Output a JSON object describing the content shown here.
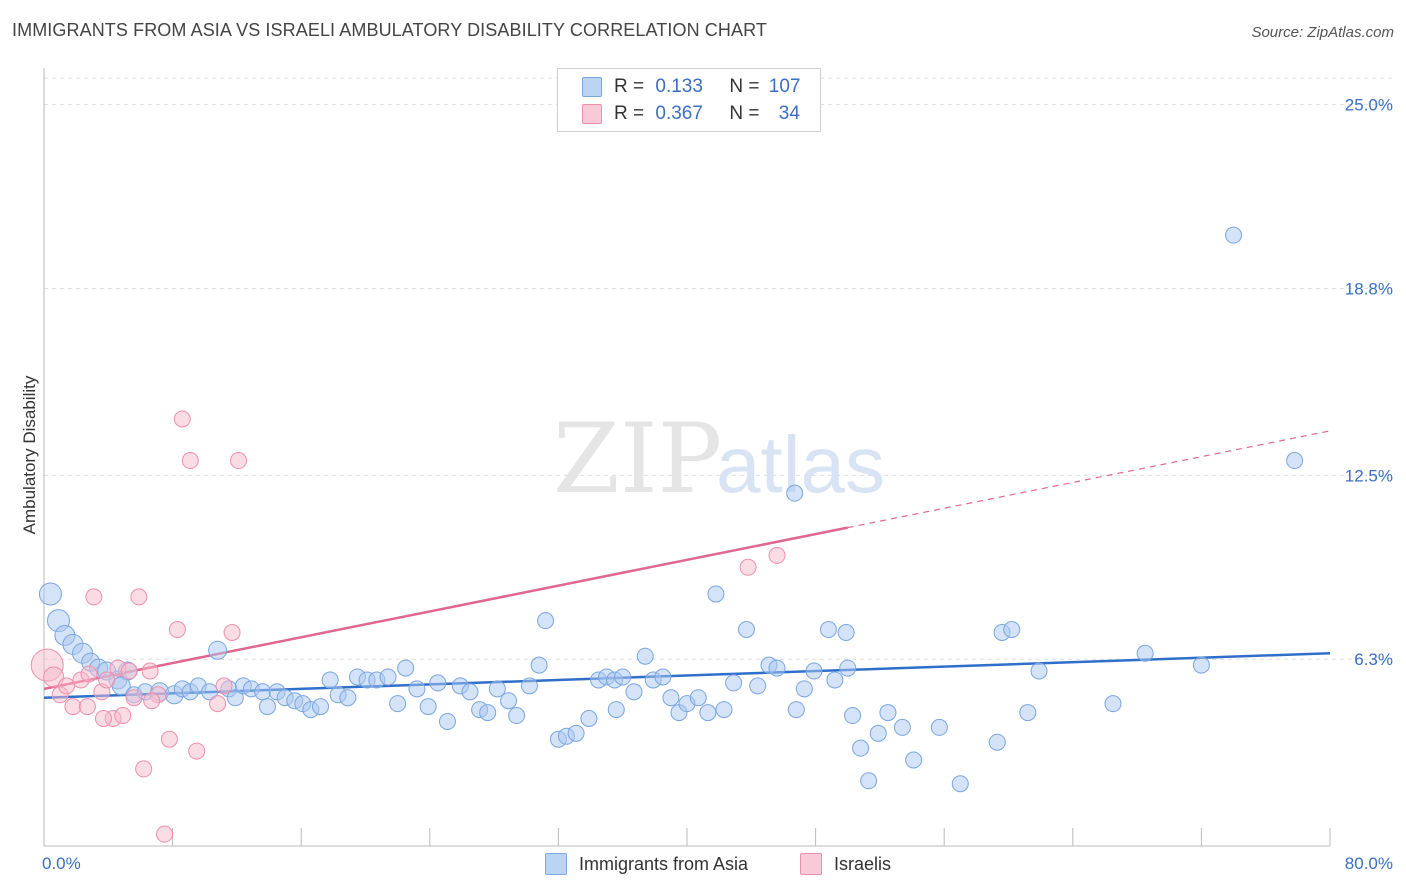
{
  "title": "IMMIGRANTS FROM ASIA VS ISRAELI AMBULATORY DISABILITY CORRELATION CHART",
  "source": "Source: ZipAtlas.com",
  "watermark_zip": "ZIP",
  "watermark_atlas": "atlas",
  "legend": {
    "rows": [
      {
        "r_label": "R =",
        "r_value": "0.133",
        "n_label": "N =",
        "n_value": "107"
      },
      {
        "r_label": "R =",
        "r_value": "0.367",
        "n_label": "N =",
        "n_value": "34"
      }
    ]
  },
  "colors": {
    "blue_fill": "#a9c8f0",
    "blue_stroke": "#7aa6e0",
    "blue_line": "#2f6fcc",
    "pink_fill": "#f6b9cc",
    "pink_stroke": "#ee8fae",
    "pink_line": "#e0678f",
    "axis_label": "#3a6fc4",
    "grid": "#dddddd"
  },
  "chart_data": {
    "type": "scatter",
    "xlabel": "",
    "ylabel": "Ambulatory Disability",
    "xlim": [
      0,
      80
    ],
    "ylim": [
      0,
      25.9
    ],
    "x_tick_labels": [
      "0.0%",
      "80.0%"
    ],
    "y_ticks": [
      6.3,
      12.5,
      18.8,
      25.0
    ],
    "y_tick_labels": [
      "6.3%",
      "12.5%",
      "18.8%",
      "25.0%"
    ],
    "grid": true,
    "legend_position": "bottom",
    "series": [
      {
        "name": "Immigrants from Asia",
        "trend": {
          "x": [
            0,
            80
          ],
          "y": [
            5.0,
            6.5
          ],
          "dashed_from": null
        },
        "points": [
          [
            0.4,
            8.5,
            11
          ],
          [
            0.9,
            7.6,
            11
          ],
          [
            1.3,
            7.1,
            10
          ],
          [
            1.8,
            6.8,
            10
          ],
          [
            2.4,
            6.5,
            10
          ],
          [
            2.9,
            6.2,
            9
          ],
          [
            3.4,
            6.0,
            9
          ],
          [
            3.9,
            5.9,
            9
          ],
          [
            4.6,
            5.6,
            9
          ],
          [
            5.2,
            5.9,
            9
          ],
          [
            4.8,
            5.4,
            9
          ],
          [
            5.6,
            5.1,
            8
          ],
          [
            6.3,
            5.2,
            8
          ],
          [
            7.2,
            5.2,
            9
          ],
          [
            8.1,
            5.1,
            9
          ],
          [
            8.6,
            5.3,
            8
          ],
          [
            9.1,
            5.2,
            8
          ],
          [
            9.6,
            5.4,
            8
          ],
          [
            10.3,
            5.2,
            8
          ],
          [
            10.8,
            6.6,
            9
          ],
          [
            11.5,
            5.3,
            8
          ],
          [
            11.9,
            5.0,
            8
          ],
          [
            12.4,
            5.4,
            8
          ],
          [
            12.9,
            5.3,
            8
          ],
          [
            13.6,
            5.2,
            8
          ],
          [
            13.9,
            4.7,
            8
          ],
          [
            14.5,
            5.2,
            8
          ],
          [
            15.0,
            5.0,
            8
          ],
          [
            15.6,
            4.9,
            8
          ],
          [
            16.1,
            4.8,
            8
          ],
          [
            16.6,
            4.6,
            8
          ],
          [
            17.2,
            4.7,
            8
          ],
          [
            17.8,
            5.6,
            8
          ],
          [
            18.3,
            5.1,
            8
          ],
          [
            18.9,
            5.0,
            8
          ],
          [
            19.5,
            5.7,
            8
          ],
          [
            20.1,
            5.6,
            8
          ],
          [
            20.7,
            5.6,
            8
          ],
          [
            21.4,
            5.7,
            8
          ],
          [
            22.0,
            4.8,
            8
          ],
          [
            22.5,
            6.0,
            8
          ],
          [
            23.2,
            5.3,
            8
          ],
          [
            23.9,
            4.7,
            8
          ],
          [
            24.5,
            5.5,
            8
          ],
          [
            25.1,
            4.2,
            8
          ],
          [
            25.9,
            5.4,
            8
          ],
          [
            26.5,
            5.2,
            8
          ],
          [
            27.1,
            4.6,
            8
          ],
          [
            27.6,
            4.5,
            8
          ],
          [
            28.2,
            5.3,
            8
          ],
          [
            28.9,
            4.9,
            8
          ],
          [
            29.4,
            4.4,
            8
          ],
          [
            30.2,
            5.4,
            8
          ],
          [
            30.8,
            6.1,
            8
          ],
          [
            31.2,
            7.6,
            8
          ],
          [
            32.0,
            3.6,
            8
          ],
          [
            32.5,
            3.7,
            8
          ],
          [
            33.1,
            3.8,
            8
          ],
          [
            33.9,
            4.3,
            8
          ],
          [
            34.5,
            5.6,
            8
          ],
          [
            35.0,
            5.7,
            8
          ],
          [
            35.5,
            5.6,
            8
          ],
          [
            36.0,
            5.7,
            8
          ],
          [
            36.7,
            5.2,
            8
          ],
          [
            37.4,
            6.4,
            8
          ],
          [
            37.9,
            5.6,
            8
          ],
          [
            38.5,
            5.7,
            8
          ],
          [
            39.0,
            5.0,
            8
          ],
          [
            39.5,
            4.5,
            8
          ],
          [
            40.0,
            4.8,
            8
          ],
          [
            40.7,
            5.0,
            8
          ],
          [
            41.3,
            4.5,
            8
          ],
          [
            41.8,
            8.5,
            8
          ],
          [
            42.3,
            4.6,
            8
          ],
          [
            42.9,
            5.5,
            8
          ],
          [
            43.7,
            7.3,
            8
          ],
          [
            44.4,
            5.4,
            8
          ],
          [
            45.1,
            6.1,
            8
          ],
          [
            45.6,
            6.0,
            8
          ],
          [
            46.7,
            11.9,
            8
          ],
          [
            46.8,
            4.6,
            8
          ],
          [
            47.3,
            5.3,
            8
          ],
          [
            47.9,
            5.9,
            8
          ],
          [
            48.8,
            7.3,
            8
          ],
          [
            49.2,
            5.6,
            8
          ],
          [
            49.9,
            7.2,
            8
          ],
          [
            50.3,
            4.4,
            8
          ],
          [
            50.8,
            3.3,
            8
          ],
          [
            51.9,
            3.8,
            8
          ],
          [
            51.3,
            2.2,
            8
          ],
          [
            52.5,
            4.5,
            8
          ],
          [
            53.4,
            4.0,
            8
          ],
          [
            54.1,
            2.9,
            8
          ],
          [
            55.7,
            4.0,
            8
          ],
          [
            57.0,
            2.1,
            8
          ],
          [
            59.3,
            3.5,
            8
          ],
          [
            59.6,
            7.2,
            8
          ],
          [
            60.2,
            7.3,
            8
          ],
          [
            61.2,
            4.5,
            8
          ],
          [
            61.9,
            5.9,
            8
          ],
          [
            66.5,
            4.8,
            8
          ],
          [
            68.5,
            6.5,
            8
          ],
          [
            72.0,
            6.1,
            8
          ],
          [
            74.0,
            20.6,
            8
          ],
          [
            77.8,
            13.0,
            8
          ],
          [
            50.0,
            6.0,
            8
          ],
          [
            35.6,
            4.6,
            8
          ]
        ]
      },
      {
        "name": "Israelis",
        "trend": {
          "x": [
            0,
            80
          ],
          "y": [
            5.3,
            14.0
          ],
          "dashed_from": 50.0
        },
        "points": [
          [
            0.2,
            6.1,
            16
          ],
          [
            0.6,
            5.7,
            10
          ],
          [
            1.0,
            5.1,
            8
          ],
          [
            1.4,
            5.4,
            8
          ],
          [
            1.8,
            4.7,
            8
          ],
          [
            2.3,
            5.6,
            8
          ],
          [
            2.8,
            5.8,
            8
          ],
          [
            2.7,
            4.7,
            8
          ],
          [
            3.1,
            8.4,
            8
          ],
          [
            3.6,
            5.2,
            8
          ],
          [
            3.9,
            5.6,
            8
          ],
          [
            4.3,
            4.3,
            8
          ],
          [
            4.6,
            6.0,
            8
          ],
          [
            4.9,
            4.4,
            8
          ],
          [
            5.3,
            5.9,
            8
          ],
          [
            5.6,
            5.0,
            8
          ],
          [
            5.9,
            8.4,
            8
          ],
          [
            6.2,
            2.6,
            8
          ],
          [
            6.6,
            5.9,
            8
          ],
          [
            7.1,
            5.1,
            8
          ],
          [
            7.5,
            0.4,
            8
          ],
          [
            7.8,
            3.6,
            8
          ],
          [
            8.3,
            7.3,
            8
          ],
          [
            8.6,
            14.4,
            8
          ],
          [
            9.1,
            13.0,
            8
          ],
          [
            9.5,
            3.2,
            8
          ],
          [
            10.8,
            4.8,
            8
          ],
          [
            11.2,
            5.4,
            8
          ],
          [
            11.7,
            7.2,
            8
          ],
          [
            12.1,
            13.0,
            8
          ],
          [
            43.8,
            9.4,
            8
          ],
          [
            45.6,
            9.8,
            8
          ],
          [
            6.7,
            4.9,
            8
          ],
          [
            3.7,
            4.3,
            8
          ]
        ]
      }
    ]
  },
  "bottom_legend": {
    "items": [
      {
        "label": "Immigrants from Asia"
      },
      {
        "label": "Israelis"
      }
    ]
  }
}
